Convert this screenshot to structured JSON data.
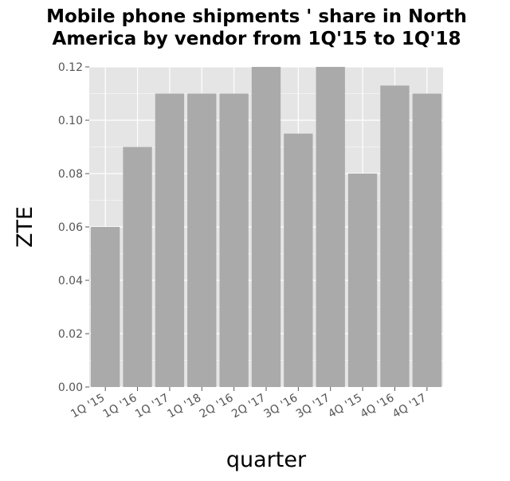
{
  "chart_data": {
    "type": "bar",
    "title_lines": [
      "Mobile phone shipments ' share in North",
      "America by vendor from 1Q'15 to 1Q'18"
    ],
    "xlabel": "quarter",
    "ylabel": "ZTE",
    "categories": [
      "1Q '15",
      "1Q '16",
      "1Q '17",
      "1Q '18",
      "2Q '16",
      "2Q '17",
      "3Q '16",
      "3Q '17",
      "4Q '15",
      "4Q '16",
      "4Q '17"
    ],
    "values": [
      0.06,
      0.09,
      0.11,
      0.11,
      0.11,
      0.12,
      0.095,
      0.12,
      0.08,
      0.113,
      0.11
    ],
    "ylim": [
      0,
      0.12
    ],
    "yticks": [
      "0.00",
      "0.02",
      "0.04",
      "0.06",
      "0.08",
      "0.10",
      "0.12"
    ],
    "grid": true,
    "colors": {
      "panel": "#e5e5e5",
      "grid": "#ffffff",
      "bar": "#aaaaaa",
      "tick": "#555555"
    }
  }
}
